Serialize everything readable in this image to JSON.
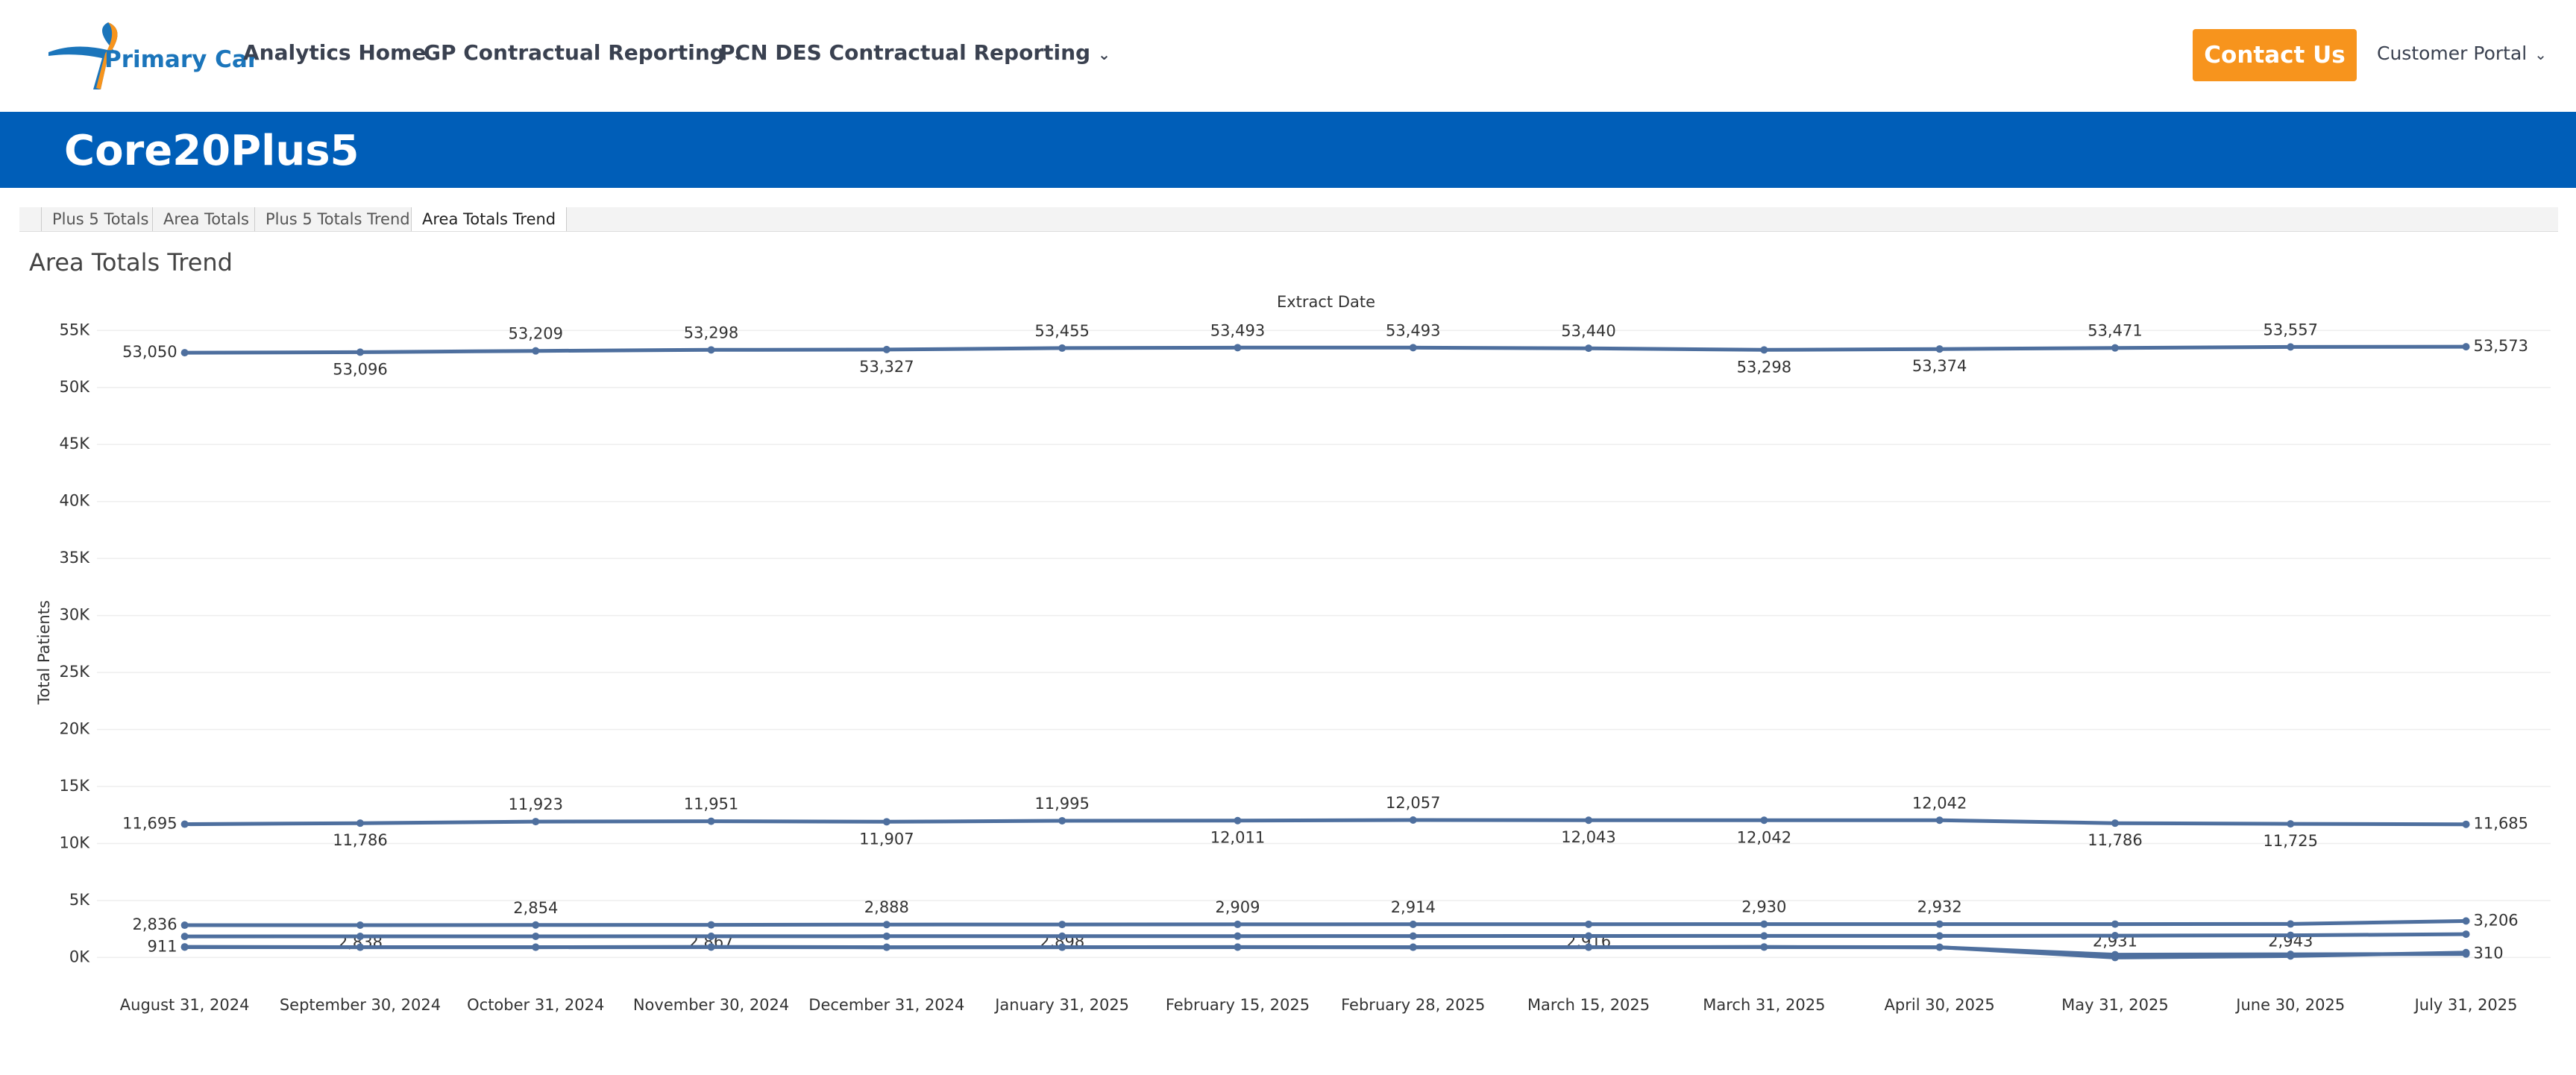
{
  "header": {
    "logo": "Primary Care IT",
    "nav": [
      "Analytics Home",
      "GP Contractual Reporting",
      "PCN DES Contractual Reporting"
    ],
    "contact": "Contact Us",
    "portal": "Customer Portal"
  },
  "banner": {
    "title": "Core20Plus5"
  },
  "tabs": {
    "items": [
      "Plus 5 Totals",
      "Area Totals",
      "Plus 5 Totals Trend",
      "Area Totals Trend"
    ],
    "active": 3
  },
  "chart_data": {
    "type": "line",
    "title": "Area Totals Trend",
    "x_label": "Extract Date",
    "y_label": "Total Patients",
    "categories": [
      "August 31, 2024",
      "September 30, 2024",
      "October 31, 2024",
      "November 30, 2024",
      "December 31, 2024",
      "January 31, 2025",
      "February 15, 2025",
      "February 28, 2025",
      "March 15, 2025",
      "March 31, 2025",
      "April 30, 2025",
      "May 31, 2025",
      "June 30, 2025",
      "July 31, 2025"
    ],
    "ylim": [
      -2000,
      56000
    ],
    "yticks": [
      {
        "value": 0,
        "label": "0K"
      },
      {
        "value": 5000,
        "label": "5K"
      },
      {
        "value": 10000,
        "label": "10K"
      },
      {
        "value": 15000,
        "label": "15K"
      },
      {
        "value": 20000,
        "label": "20K"
      },
      {
        "value": 25000,
        "label": "25K"
      },
      {
        "value": 30000,
        "label": "30K"
      },
      {
        "value": 35000,
        "label": "35K"
      },
      {
        "value": 40000,
        "label": "40K"
      },
      {
        "value": 45000,
        "label": "45K"
      },
      {
        "value": 50000,
        "label": "50K"
      },
      {
        "value": 55000,
        "label": "55K"
      }
    ],
    "grid": true,
    "series": [
      {
        "color": "#4e6f9e",
        "values": [
          53050,
          53096,
          53209,
          53298,
          53327,
          53455,
          53493,
          53493,
          53440,
          53298,
          53374,
          53471,
          53557,
          53573
        ],
        "value_labels": [
          "53,050",
          "53,096",
          "53,209",
          "53,298",
          "53,327",
          "53,455",
          "53,493",
          "53,493",
          "53,440",
          "53,298",
          "53,374",
          "53,471",
          "53,557",
          "53,573"
        ]
      },
      {
        "color": "#4e6f9e",
        "values": [
          11695,
          11786,
          11923,
          11951,
          11907,
          11995,
          12011,
          12057,
          12043,
          12042,
          12042,
          11786,
          11725,
          11685
        ],
        "value_labels": [
          "11,695",
          "11,786",
          "11,923",
          "11,951",
          "11,907",
          "11,995",
          "12,011",
          "12,057",
          "12,043",
          "12,042",
          "12,042",
          "11,786",
          "11,725",
          "11,685"
        ]
      },
      {
        "color": "#4e6f9e",
        "values": [
          2836,
          2838,
          2854,
          2867,
          2888,
          2898,
          2909,
          2914,
          2916,
          2930,
          2932,
          2931,
          2943,
          3206
        ],
        "value_labels": [
          "2,836",
          "2,838",
          "2,854",
          "2,867",
          "2,888",
          "2,898",
          "2,909",
          "2,914",
          "2,916",
          "2,930",
          "2,932",
          "2,931",
          "2,943",
          "3,206"
        ]
      },
      {
        "color": "#4e6f9e",
        "values": [
          1850,
          1855,
          1860,
          1865,
          1870,
          1875,
          1880,
          1885,
          1890,
          1895,
          1900,
          1920,
          1950,
          2050
        ]
      },
      {
        "color": "#4e6f9e",
        "values": [
          938,
          907,
          909,
          927,
          902,
          908,
          918,
          907,
          909,
          926,
          901,
          0,
          134,
          432
        ]
      },
      {
        "color": "#4e6f9e",
        "values": [
          911,
          905,
          905,
          915,
          900,
          905,
          910,
          900,
          905,
          915,
          900,
          250,
          280,
          310
        ],
        "value_labels": [
          "911",
          null,
          null,
          null,
          null,
          null,
          null,
          null,
          null,
          null,
          null,
          null,
          null,
          "310"
        ]
      }
    ]
  }
}
